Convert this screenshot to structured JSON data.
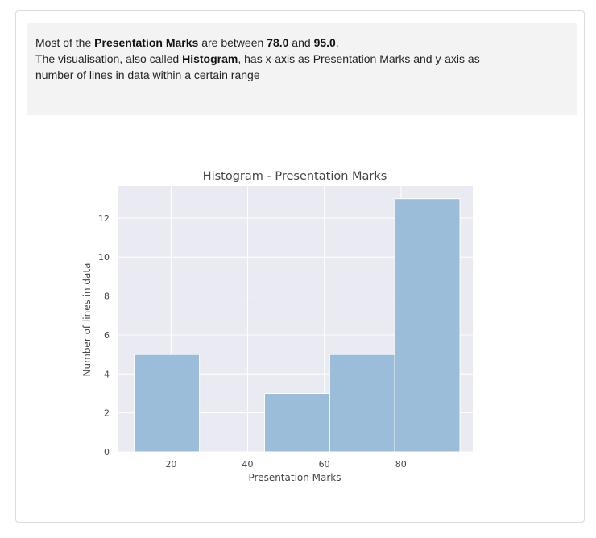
{
  "summary": {
    "line1_prefix": "Most of the ",
    "line1_field": "Presentation Marks",
    "line1_mid": " are between ",
    "line1_low": "78.0",
    "line1_and": " and ",
    "line1_high": "95.0",
    "line1_end": ".",
    "line2_prefix": "The visualisation, also called ",
    "line2_chart": "Histogram",
    "line2_rest": ", has x-axis as Presentation Marks and y-axis as",
    "line3": "number of lines in data within a certain range"
  },
  "chart_data": {
    "type": "bar",
    "title": "Histogram - Presentation Marks",
    "xlabel": "Presentation Marks",
    "ylabel": "Number of lines in data",
    "xlim": [
      6.25,
      98.75
    ],
    "ylim": [
      0,
      13.65
    ],
    "xticks": [
      20,
      40,
      60,
      80
    ],
    "yticks": [
      0,
      2,
      4,
      6,
      8,
      10,
      12
    ],
    "bins": [
      {
        "start": 10.4,
        "end": 27.4,
        "value": 5
      },
      {
        "start": 27.4,
        "end": 44.4,
        "value": 0
      },
      {
        "start": 44.4,
        "end": 61.4,
        "value": 3
      },
      {
        "start": 61.4,
        "end": 78.4,
        "value": 5
      },
      {
        "start": 78.4,
        "end": 95.4,
        "value": 13
      }
    ],
    "bar_color": "#9bbdd9",
    "plot_background": "#eaeaf2",
    "grid": true
  }
}
